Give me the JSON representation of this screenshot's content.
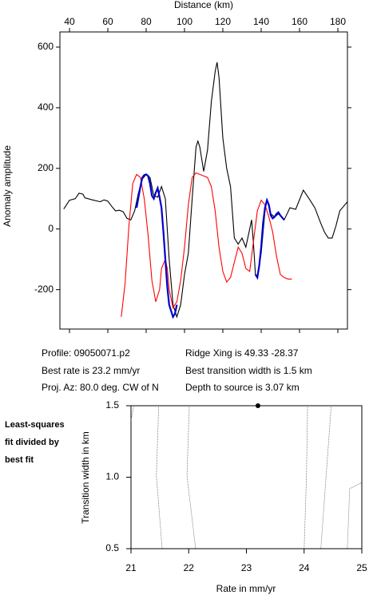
{
  "chart_data": [
    {
      "type": "line",
      "xlabel": "Distance (km)",
      "ylabel": "Anomaly amplitude",
      "xlim": [
        35,
        185
      ],
      "ylim": [
        -330,
        650
      ],
      "xticks": [
        40,
        60,
        80,
        100,
        120,
        140,
        160,
        180
      ],
      "yticks": [
        600,
        400,
        200,
        0,
        -200
      ],
      "series": [
        {
          "color": "#000000",
          "x": [
            37,
            40,
            43,
            45,
            47,
            48,
            52,
            56,
            58,
            60,
            62,
            64,
            66,
            68,
            70,
            72,
            74,
            76,
            78,
            80,
            82,
            84,
            86,
            88,
            90,
            92,
            94,
            96,
            98,
            100,
            102,
            104,
            106,
            107,
            108,
            110,
            112,
            114,
            116,
            117,
            118,
            120,
            122,
            124,
            126,
            128,
            130,
            132,
            134,
            135,
            136,
            137,
            138,
            140,
            142,
            143,
            145,
            147,
            149,
            152,
            155,
            158,
            162,
            165,
            168,
            171,
            173,
            175,
            177,
            179,
            181,
            183,
            185
          ],
          "values": [
            66,
            95,
            100,
            118,
            115,
            103,
            96,
            90,
            96,
            92,
            75,
            60,
            62,
            57,
            35,
            30,
            60,
            120,
            165,
            180,
            170,
            110,
            105,
            140,
            100,
            -100,
            -250,
            -290,
            -250,
            -150,
            -80,
            100,
            270,
            290,
            270,
            190,
            260,
            420,
            520,
            550,
            500,
            300,
            200,
            140,
            -30,
            -50,
            -30,
            -60,
            0,
            30,
            -50,
            -150,
            -160,
            -80,
            60,
            100,
            50,
            40,
            50,
            30,
            70,
            65,
            128,
            100,
            70,
            20,
            -10,
            -30,
            -30,
            10,
            60,
            75,
            90
          ]
        },
        {
          "color": "#ff0000",
          "x": [
            67,
            69,
            71,
            73,
            75,
            77,
            79,
            81,
            83,
            85,
            87,
            88,
            90,
            91,
            92,
            94,
            96,
            98,
            100,
            102,
            104,
            106,
            108,
            110,
            112,
            114,
            116,
            118,
            120,
            122,
            124,
            126,
            128,
            130,
            132,
            134,
            136,
            138,
            140,
            142,
            144,
            146,
            148,
            150,
            152,
            154,
            156
          ],
          "values": [
            -290,
            -180,
            10,
            150,
            180,
            170,
            100,
            -20,
            -170,
            -240,
            -200,
            -130,
            -100,
            -130,
            -200,
            -260,
            -240,
            -170,
            -60,
            80,
            170,
            185,
            180,
            175,
            170,
            140,
            60,
            -60,
            -140,
            -175,
            -160,
            -110,
            -60,
            -80,
            -130,
            -140,
            -40,
            60,
            95,
            80,
            40,
            -10,
            -90,
            -150,
            -160,
            -165,
            -165
          ]
        },
        {
          "color": "#0000cc",
          "x": [
            75,
            77,
            78,
            79,
            80,
            81,
            82,
            83,
            84,
            85,
            86,
            87,
            88,
            89,
            90,
            91,
            92,
            93,
            94,
            95,
            96,
            null,
            137,
            138,
            139,
            140,
            141,
            142,
            143,
            144,
            145,
            146,
            147,
            148,
            149,
            150,
            152
          ],
          "values": [
            70,
            140,
            170,
            178,
            180,
            175,
            150,
            110,
            100,
            120,
            135,
            105,
            70,
            -10,
            -100,
            -190,
            -250,
            -270,
            -290,
            -280,
            -250,
            null,
            -150,
            -160,
            -120,
            -60,
            20,
            70,
            95,
            80,
            45,
            35,
            40,
            50,
            55,
            45,
            30
          ]
        }
      ],
      "annotations": [
        "Profile: 09050071.p2",
        "Ridge Xing is 49.33 -28.37",
        "Best rate is 23.2 mm/yr",
        "Best transition width is 1.5 km",
        "Proj. Az: 80.0 deg. CW of N",
        "Depth to source is   3.07 km"
      ]
    },
    {
      "type": "contour",
      "title": [
        "Least-squares",
        "fit divided by",
        "best fit"
      ],
      "xlabel": "Rate in mm/yr",
      "ylabel": "Transition width in km",
      "xlim": [
        21,
        25
      ],
      "ylim": [
        0.5,
        1.5
      ],
      "xticks": [
        21,
        22,
        23,
        24,
        25
      ],
      "yticks": [
        0.5,
        {
          "value": 1.0,
          "label": "1.0"
        },
        1.5
      ],
      "best_fit": {
        "x": 23.2,
        "y": 1.5
      },
      "contours": [
        {
          "x": [
            21.0,
            21.05
          ],
          "y": [
            1.4,
            1.5
          ]
        },
        {
          "x": [
            21.48,
            21.44,
            21.54
          ],
          "y": [
            1.5,
            1.01,
            0.5
          ]
        },
        {
          "x": [
            22.01,
            21.97,
            22.12
          ],
          "y": [
            1.5,
            1.01,
            0.5
          ]
        },
        {
          "x": [
            24.06,
            24.04,
            24.0
          ],
          "y": [
            1.5,
            0.99,
            0.5
          ]
        },
        {
          "x": [
            24.47,
            24.29
          ],
          "y": [
            1.5,
            0.5
          ]
        },
        {
          "x": [
            24.99,
            24.79,
            24.75
          ],
          "y": [
            0.96,
            0.92,
            0.5
          ]
        }
      ]
    }
  ]
}
